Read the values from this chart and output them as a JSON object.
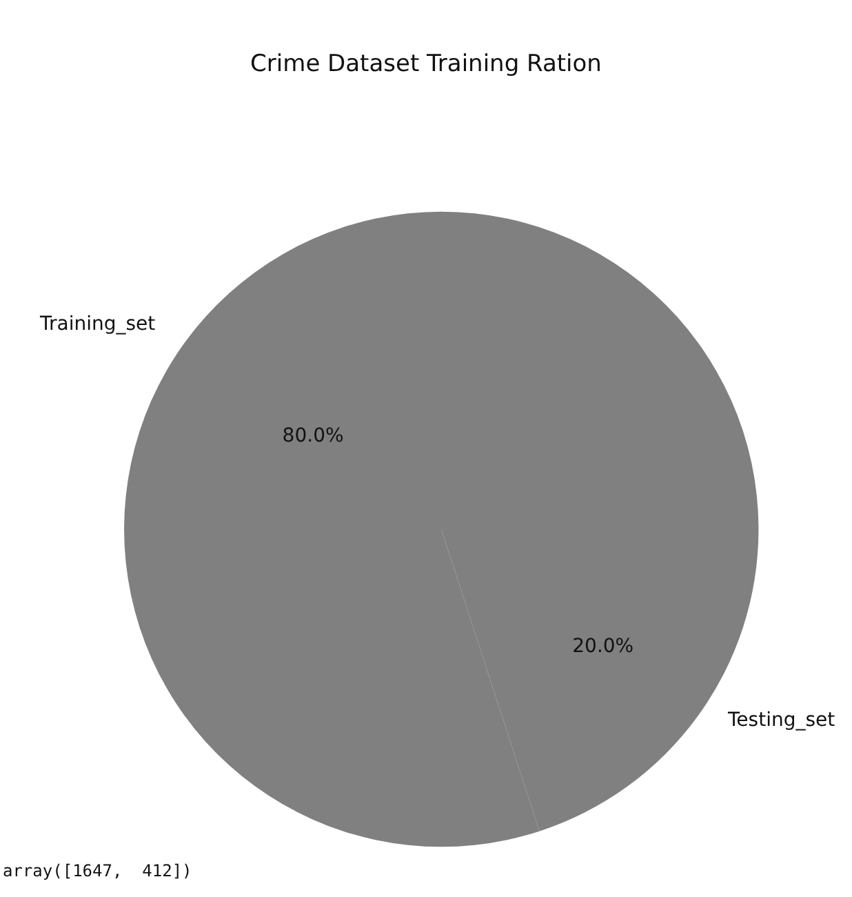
{
  "chart_data": {
    "type": "pie",
    "title": "Crime Dataset Training Ration",
    "categories": [
      "Training_set",
      "Testing_set"
    ],
    "values": [
      80,
      20
    ],
    "colors": [
      "#808080",
      "#808080"
    ],
    "value_labels": [
      "80.0%",
      "20.0%"
    ],
    "annotations": [
      "array([1647,  412])"
    ]
  }
}
